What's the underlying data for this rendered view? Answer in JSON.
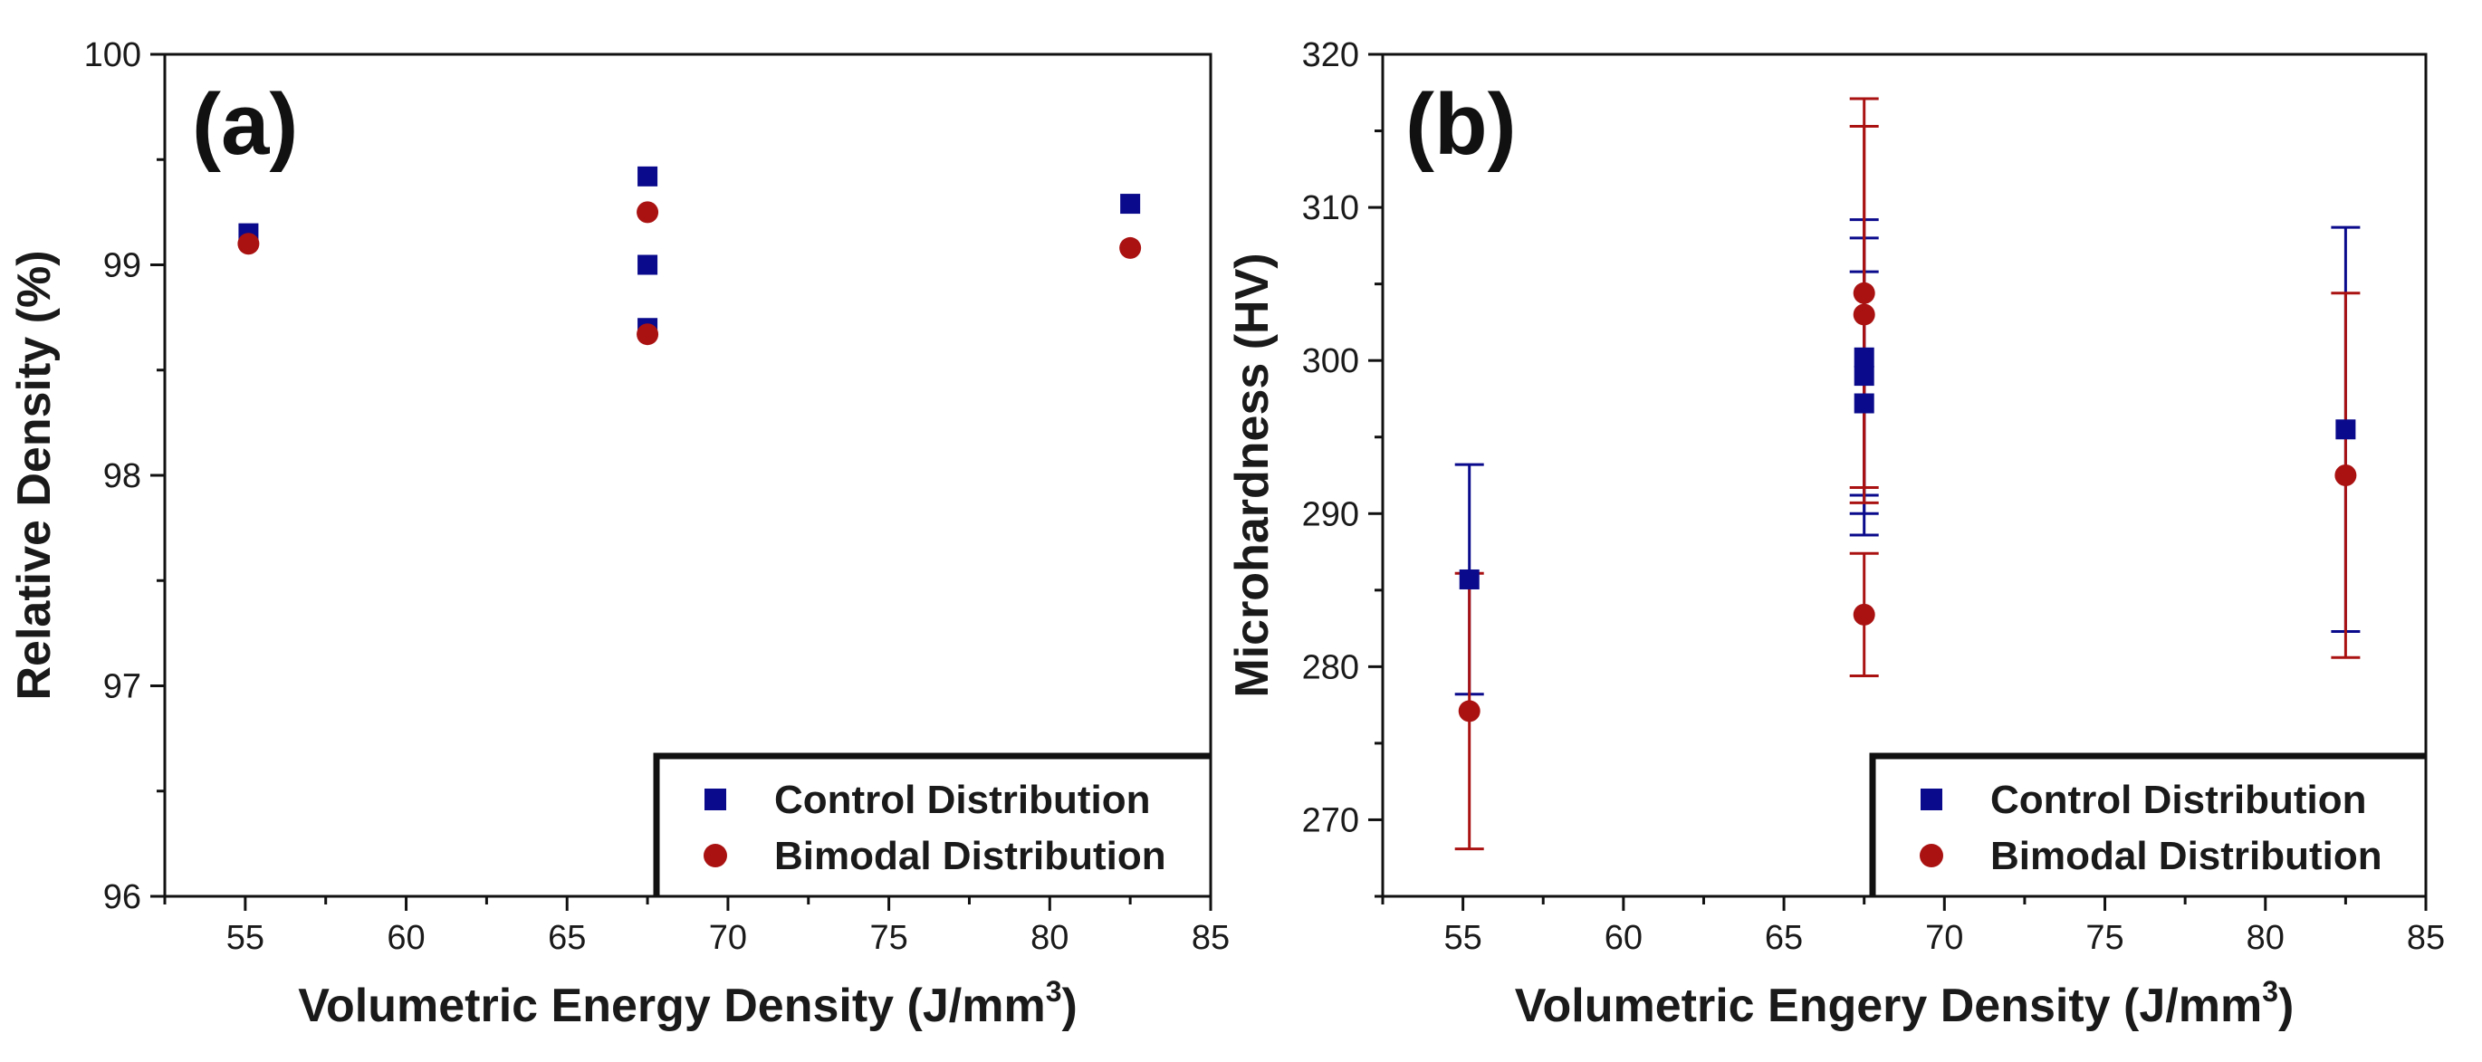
{
  "colors": {
    "control": "#0a0a8c",
    "bimodal": "#aa1212",
    "axis": "#111111"
  },
  "chart_data": [
    {
      "type": "scatter",
      "panel_label": "(a)",
      "title": "",
      "xlabel": "Volumetric Energy Density (J/mm",
      "xlabel_sup": "3",
      "xlabel_end": ")",
      "ylabel": "Relative Density (%)",
      "xlim": [
        52.5,
        85
      ],
      "ylim": [
        96,
        100
      ],
      "x_ticks": [
        55,
        60,
        65,
        70,
        75,
        80,
        85
      ],
      "x_tick_labels": [
        "55",
        "60",
        "65",
        "70",
        "75",
        "80",
        "85"
      ],
      "y_ticks": [
        96,
        97,
        98,
        99,
        100
      ],
      "y_tick_labels": [
        "96",
        "97",
        "98",
        "99",
        "100"
      ],
      "legend": {
        "position": "bottom-right",
        "entries": [
          "Control Distribution",
          "Bimodal Distribution"
        ]
      },
      "series": [
        {
          "name": "Control Distribution",
          "marker": "square",
          "points": [
            {
              "x": 55.1,
              "y": 99.15
            },
            {
              "x": 67.5,
              "y": 99.42
            },
            {
              "x": 67.5,
              "y": 99.0
            },
            {
              "x": 67.5,
              "y": 98.7
            },
            {
              "x": 82.5,
              "y": 99.29
            }
          ]
        },
        {
          "name": "Bimodal Distribution",
          "marker": "circle",
          "points": [
            {
              "x": 55.1,
              "y": 99.1
            },
            {
              "x": 67.5,
              "y": 99.25
            },
            {
              "x": 67.5,
              "y": 98.67
            },
            {
              "x": 82.5,
              "y": 99.08
            }
          ]
        }
      ]
    },
    {
      "type": "scatter",
      "panel_label": "(b)",
      "title": "",
      "xlabel": "Volumetric Engery Density (J/mm",
      "xlabel_sup": "3",
      "xlabel_end": ")",
      "ylabel": "Microhardness (HV)",
      "xlim": [
        52.5,
        85
      ],
      "ylim": [
        265,
        320
      ],
      "x_ticks": [
        55,
        60,
        65,
        70,
        75,
        80,
        85
      ],
      "x_tick_labels": [
        "55",
        "60",
        "65",
        "70",
        "75",
        "80",
        "85"
      ],
      "y_ticks": [
        270,
        280,
        290,
        300,
        310,
        320
      ],
      "y_tick_labels": [
        "270",
        "280",
        "290",
        "300",
        "310",
        "320"
      ],
      "legend": {
        "position": "bottom-right",
        "entries": [
          "Control Distribution",
          "Bimodal Distribution"
        ]
      },
      "series": [
        {
          "name": "Control Distribution",
          "marker": "square",
          "points": [
            {
              "x": 55.2,
              "y": 285.7,
              "err": 7.5
            },
            {
              "x": 67.5,
              "y": 300.2,
              "err": 9.0
            },
            {
              "x": 67.5,
              "y": 299.0,
              "err": 9.0
            },
            {
              "x": 67.5,
              "y": 297.2,
              "err": 8.6
            },
            {
              "x": 82.5,
              "y": 295.5,
              "err": 13.2
            }
          ]
        },
        {
          "name": "Bimodal Distribution",
          "marker": "circle",
          "points": [
            {
              "x": 55.2,
              "y": 277.1,
              "err": 9.0
            },
            {
              "x": 67.5,
              "y": 304.4,
              "err": 12.7
            },
            {
              "x": 67.5,
              "y": 303.0,
              "err": 12.3
            },
            {
              "x": 67.5,
              "y": 283.4,
              "err": 4.0
            },
            {
              "x": 82.5,
              "y": 292.5,
              "err": 11.9
            }
          ]
        }
      ]
    }
  ]
}
